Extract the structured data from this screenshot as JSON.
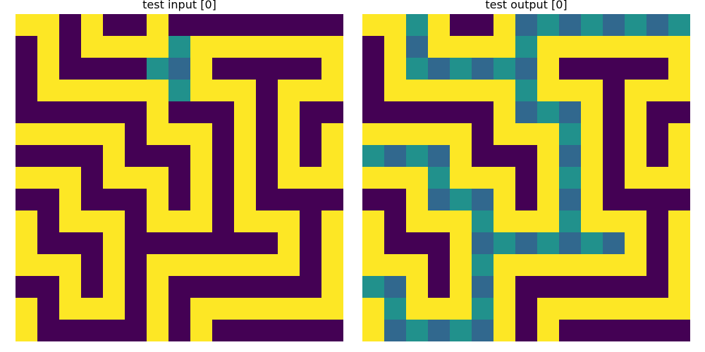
{
  "colors": {
    "0": "#440154",
    "1": "#fde725",
    "2": "#21918c",
    "3": "#31688e"
  },
  "panels": [
    {
      "title": "test input [0]",
      "grid": [
        [
          1,
          1,
          0,
          1,
          0,
          0,
          1,
          0,
          0,
          0,
          0,
          0,
          0,
          0,
          0
        ],
        [
          0,
          1,
          0,
          1,
          1,
          1,
          1,
          2,
          1,
          1,
          1,
          1,
          1,
          1,
          1
        ],
        [
          0,
          1,
          0,
          0,
          0,
          0,
          2,
          3,
          1,
          0,
          0,
          0,
          0,
          0,
          1
        ],
        [
          0,
          1,
          1,
          1,
          1,
          1,
          1,
          2,
          1,
          1,
          1,
          0,
          1,
          1,
          1
        ],
        [
          0,
          0,
          0,
          0,
          0,
          0,
          1,
          0,
          0,
          0,
          1,
          0,
          1,
          0,
          0
        ],
        [
          1,
          1,
          1,
          1,
          1,
          0,
          1,
          1,
          1,
          0,
          1,
          0,
          1,
          0,
          1
        ],
        [
          0,
          0,
          0,
          0,
          1,
          0,
          0,
          0,
          1,
          0,
          1,
          0,
          1,
          0,
          1
        ],
        [
          1,
          1,
          1,
          0,
          1,
          1,
          1,
          0,
          1,
          0,
          1,
          0,
          1,
          1,
          1
        ],
        [
          0,
          0,
          1,
          0,
          0,
          0,
          1,
          0,
          1,
          0,
          1,
          0,
          0,
          0,
          0
        ],
        [
          1,
          0,
          1,
          1,
          1,
          0,
          1,
          1,
          1,
          0,
          1,
          1,
          1,
          0,
          1
        ],
        [
          1,
          0,
          0,
          0,
          1,
          0,
          0,
          0,
          0,
          0,
          0,
          0,
          1,
          0,
          1
        ],
        [
          1,
          1,
          1,
          0,
          1,
          0,
          1,
          1,
          1,
          1,
          1,
          1,
          1,
          0,
          1
        ],
        [
          0,
          0,
          1,
          0,
          1,
          0,
          1,
          0,
          0,
          0,
          0,
          0,
          0,
          0,
          1
        ],
        [
          1,
          0,
          1,
          1,
          1,
          0,
          1,
          0,
          1,
          1,
          1,
          1,
          1,
          1,
          1
        ],
        [
          1,
          0,
          0,
          0,
          0,
          0,
          1,
          0,
          1,
          0,
          0,
          0,
          0,
          0,
          0
        ]
      ]
    },
    {
      "title": "test output [0]",
      "grid": [
        [
          1,
          1,
          2,
          1,
          0,
          0,
          1,
          3,
          2,
          3,
          2,
          3,
          2,
          3,
          2
        ],
        [
          0,
          1,
          3,
          1,
          1,
          1,
          1,
          2,
          1,
          1,
          1,
          1,
          1,
          1,
          1
        ],
        [
          0,
          1,
          2,
          3,
          2,
          3,
          2,
          3,
          1,
          0,
          0,
          0,
          0,
          0,
          1
        ],
        [
          0,
          1,
          1,
          1,
          1,
          1,
          1,
          2,
          1,
          1,
          1,
          0,
          1,
          1,
          1
        ],
        [
          0,
          0,
          0,
          0,
          0,
          0,
          1,
          3,
          2,
          3,
          1,
          0,
          1,
          0,
          0
        ],
        [
          1,
          1,
          1,
          1,
          1,
          0,
          1,
          1,
          1,
          2,
          1,
          0,
          1,
          0,
          1
        ],
        [
          2,
          3,
          2,
          3,
          1,
          0,
          0,
          0,
          1,
          3,
          1,
          0,
          1,
          0,
          1
        ],
        [
          1,
          1,
          1,
          2,
          1,
          1,
          1,
          0,
          1,
          2,
          1,
          0,
          1,
          1,
          1
        ],
        [
          0,
          0,
          1,
          3,
          2,
          3,
          1,
          0,
          1,
          3,
          1,
          0,
          0,
          0,
          0
        ],
        [
          1,
          0,
          1,
          1,
          1,
          2,
          1,
          1,
          1,
          2,
          1,
          1,
          1,
          0,
          1
        ],
        [
          1,
          0,
          0,
          0,
          1,
          3,
          2,
          3,
          2,
          3,
          2,
          3,
          1,
          0,
          1
        ],
        [
          1,
          1,
          1,
          0,
          1,
          2,
          1,
          1,
          1,
          1,
          1,
          1,
          1,
          0,
          1
        ],
        [
          2,
          3,
          1,
          0,
          1,
          3,
          1,
          0,
          0,
          0,
          0,
          0,
          0,
          0,
          1
        ],
        [
          1,
          2,
          1,
          1,
          1,
          2,
          1,
          0,
          1,
          1,
          1,
          1,
          1,
          1,
          1
        ],
        [
          1,
          3,
          2,
          3,
          2,
          3,
          1,
          0,
          1,
          0,
          0,
          0,
          0,
          0,
          0
        ]
      ]
    }
  ]
}
